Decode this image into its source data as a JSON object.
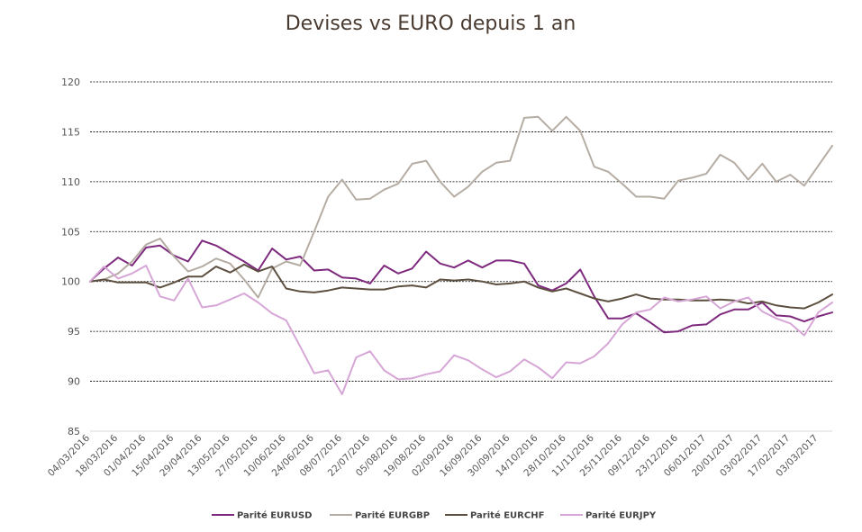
{
  "chart_data": {
    "type": "line",
    "title": "Devises vs EURO depuis 1 an",
    "xlabel": "",
    "ylabel": "",
    "ylim": [
      85,
      120
    ],
    "yticks": [
      85,
      90,
      95,
      100,
      105,
      110,
      115,
      120
    ],
    "grid": true,
    "legend_position": "bottom",
    "x": [
      "04/03/2016",
      "11/03/2016",
      "18/03/2016",
      "25/03/2016",
      "01/04/2016",
      "08/04/2016",
      "15/04/2016",
      "22/04/2016",
      "29/04/2016",
      "06/05/2016",
      "13/05/2016",
      "20/05/2016",
      "27/05/2016",
      "03/06/2016",
      "10/06/2016",
      "17/06/2016",
      "24/06/2016",
      "01/07/2016",
      "08/07/2016",
      "15/07/2016",
      "22/07/2016",
      "29/07/2016",
      "05/08/2016",
      "12/08/2016",
      "19/08/2016",
      "26/08/2016",
      "02/09/2016",
      "09/09/2016",
      "16/09/2016",
      "23/09/2016",
      "30/09/2016",
      "07/10/2016",
      "14/10/2016",
      "21/10/2016",
      "28/10/2016",
      "04/11/2016",
      "11/11/2016",
      "18/11/2016",
      "25/11/2016",
      "02/12/2016",
      "09/12/2016",
      "16/12/2016",
      "23/12/2016",
      "30/12/2016",
      "06/01/2017",
      "13/01/2017",
      "20/01/2017",
      "27/01/2017",
      "03/02/2017",
      "10/02/2017",
      "17/02/2017",
      "24/02/2017",
      "03/03/2017",
      "10/03/2017"
    ],
    "x_tick_labels": [
      "04/03/2016",
      "18/03/2016",
      "01/04/2016",
      "15/04/2016",
      "29/04/2016",
      "13/05/2016",
      "27/05/2016",
      "10/06/2016",
      "24/06/2016",
      "08/07/2016",
      "22/07/2016",
      "05/08/2016",
      "19/08/2016",
      "02/09/2016",
      "16/09/2016",
      "30/09/2016",
      "14/10/2016",
      "28/10/2016",
      "11/11/2016",
      "25/11/2016",
      "09/12/2016",
      "23/12/2016",
      "06/01/2017",
      "20/01/2017",
      "03/02/2017",
      "17/02/2017",
      "03/03/2017"
    ],
    "series": [
      {
        "name": "Parité EURUSD",
        "color": "#7e2a7e",
        "values": [
          100,
          101.3,
          102.4,
          101.6,
          103.4,
          103.6,
          102.6,
          102.0,
          104.1,
          103.6,
          102.8,
          102.0,
          101.1,
          103.3,
          102.2,
          102.5,
          101.1,
          101.2,
          100.4,
          100.3,
          99.8,
          101.6,
          100.8,
          101.3,
          103.0,
          101.8,
          101.4,
          102.1,
          101.4,
          102.1,
          102.1,
          101.8,
          99.6,
          99.1,
          99.8,
          101.2,
          98.5,
          96.3,
          96.3,
          96.8,
          95.9,
          94.9,
          95.0,
          95.6,
          95.7,
          96.7,
          97.2,
          97.2,
          97.9,
          96.6,
          96.5,
          96.0,
          96.5,
          96.9
        ]
      },
      {
        "name": "Parité EURGBP",
        "color": "#b5ada4",
        "values": [
          100,
          100.2,
          100.8,
          102.0,
          103.7,
          104.3,
          102.5,
          101.0,
          101.5,
          102.3,
          101.8,
          100.2,
          98.4,
          101.3,
          102.0,
          101.6,
          105.0,
          108.5,
          110.2,
          108.2,
          108.3,
          109.2,
          109.8,
          111.8,
          112.1,
          110.0,
          108.5,
          109.5,
          111.0,
          111.9,
          112.1,
          116.4,
          116.5,
          115.1,
          116.5,
          115.1,
          111.5,
          111.0,
          109.8,
          108.5,
          108.5,
          108.3,
          110.1,
          110.4,
          110.8,
          112.7,
          111.9,
          110.2,
          111.8,
          110.0,
          110.7,
          109.6,
          111.6,
          113.6
        ]
      },
      {
        "name": "Parité EURCHF",
        "color": "#5e5040",
        "values": [
          100,
          100.2,
          99.9,
          99.9,
          99.9,
          99.4,
          99.9,
          100.5,
          100.5,
          101.5,
          100.9,
          101.7,
          101.0,
          101.5,
          99.3,
          99.0,
          98.9,
          99.1,
          99.4,
          99.3,
          99.2,
          99.2,
          99.5,
          99.6,
          99.4,
          100.2,
          100.1,
          100.2,
          100.0,
          99.7,
          99.8,
          100.0,
          99.4,
          99.0,
          99.3,
          98.8,
          98.3,
          98.0,
          98.3,
          98.7,
          98.3,
          98.2,
          98.2,
          98.1,
          98.1,
          98.2,
          98.1,
          97.8,
          98.0,
          97.6,
          97.4,
          97.3,
          97.9,
          98.7
        ]
      },
      {
        "name": "Parité EURJPY",
        "color": "#d6a6d6",
        "values": [
          100,
          101.5,
          100.3,
          100.8,
          101.6,
          98.5,
          98.1,
          100.3,
          97.4,
          97.6,
          98.2,
          98.8,
          97.9,
          96.8,
          96.1,
          93.5,
          90.8,
          91.1,
          88.7,
          92.4,
          93.0,
          91.1,
          90.2,
          90.3,
          90.7,
          91.0,
          92.6,
          92.1,
          91.2,
          90.4,
          91.0,
          92.2,
          91.4,
          90.3,
          91.9,
          91.8,
          92.5,
          93.8,
          95.7,
          96.9,
          97.2,
          98.4,
          98.0,
          98.2,
          98.5,
          97.3,
          98.0,
          98.4,
          97.0,
          96.3,
          95.8,
          94.6,
          96.9,
          97.9
        ]
      }
    ]
  }
}
